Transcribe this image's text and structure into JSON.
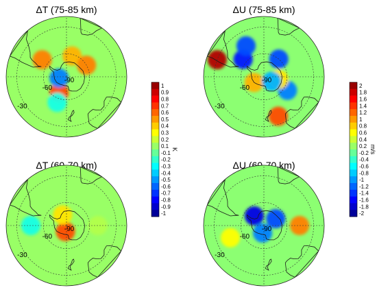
{
  "chart_data": [
    {
      "type": "heatmap",
      "projection": "south-polar-stereographic",
      "title": "ΔT (75-85 km)",
      "colorbar": "temperature",
      "latitude_labels": [
        "-90",
        "-60",
        "-30"
      ],
      "features": [
        {
          "lat": -67,
          "lon": -155,
          "value": 0.6
        },
        {
          "lat": -52,
          "lon": -55,
          "value": 0.5
        },
        {
          "lat": -62,
          "lon": 15,
          "value": 0.4
        },
        {
          "lat": -80,
          "lon": -100,
          "value": -0.5
        },
        {
          "lat": -60,
          "lon": 60,
          "value": 0.5
        },
        {
          "lat": -55,
          "lon": -160,
          "value": -0.2
        }
      ]
    },
    {
      "type": "heatmap",
      "projection": "south-polar-stereographic",
      "title": "ΔU (75-85 km)",
      "colorbar": "wind",
      "latitude_labels": [
        "-90",
        "-60",
        "-30"
      ],
      "features": [
        {
          "lat": -30,
          "lon": -70,
          "value": 1.8
        },
        {
          "lat": -55,
          "lon": -50,
          "value": -1.4
        },
        {
          "lat": -45,
          "lon": -30,
          "value": -1.2
        },
        {
          "lat": -60,
          "lon": 40,
          "value": -1.2
        },
        {
          "lat": -55,
          "lon": 120,
          "value": -1.0
        },
        {
          "lat": -38,
          "lon": 160,
          "value": 1.2
        },
        {
          "lat": -70,
          "lon": 100,
          "value": 0.6
        },
        {
          "lat": -75,
          "lon": -120,
          "value": 0.8
        },
        {
          "lat": -78,
          "lon": 120,
          "value": -0.8
        }
      ]
    },
    {
      "type": "heatmap",
      "projection": "south-polar-stereographic",
      "title": "ΔT (60-70 km)",
      "colorbar": "temperature",
      "latitude_labels": [
        "-90",
        "-60",
        "-30"
      ],
      "features": [
        {
          "lat": -82,
          "lon": -170,
          "value": 0.6
        },
        {
          "lat": -75,
          "lon": -20,
          "value": 0.3
        },
        {
          "lat": -45,
          "lon": -90,
          "value": -0.2
        },
        {
          "lat": -50,
          "lon": 90,
          "value": 0.1
        }
      ]
    },
    {
      "type": "heatmap",
      "projection": "south-polar-stereographic",
      "title": "ΔU (60-70 km)",
      "colorbar": "wind",
      "latitude_labels": [
        "-90",
        "-60",
        "-30"
      ],
      "features": [
        {
          "lat": -72,
          "lon": -45,
          "value": -1.6
        },
        {
          "lat": -72,
          "lon": 60,
          "value": -1.2
        },
        {
          "lat": -80,
          "lon": -170,
          "value": -1.0
        },
        {
          "lat": -45,
          "lon": 90,
          "value": 1.0
        },
        {
          "lat": -45,
          "lon": -110,
          "value": 0.5
        }
      ]
    }
  ],
  "colorbars": {
    "temperature": {
      "ticks": [
        "1",
        "0.9",
        "0.8",
        "0.7",
        "0.6",
        "0.5",
        "0.4",
        "0.3",
        "0.2",
        "0.1",
        "-0.1",
        "-0.2",
        "-0.3",
        "-0.4",
        "-0.5",
        "-0.6",
        "-0.7",
        "-0.8",
        "-0.9",
        "-1"
      ],
      "unit": "K",
      "range": [
        -1,
        1
      ]
    },
    "wind": {
      "ticks": [
        "2",
        "1.8",
        "1.6",
        "1.4",
        "1.2",
        "1",
        "0.8",
        "0.6",
        "0.4",
        "0.2",
        "-0.2",
        "-0.4",
        "-0.6",
        "-0.8",
        "-1",
        "-1.2",
        "-1.4",
        "-1.6",
        "-1.8",
        "-2"
      ],
      "unit": "m/s",
      "range": [
        -2,
        2
      ]
    }
  },
  "colors": {
    "scale": [
      "#00007f",
      "#0000ff",
      "#007fff",
      "#00ffff",
      "#7fff7f",
      "#ffff00",
      "#ff7f00",
      "#ff0000",
      "#7f0000"
    ],
    "coastline": "#1a1a1a",
    "grid": "#333333"
  }
}
